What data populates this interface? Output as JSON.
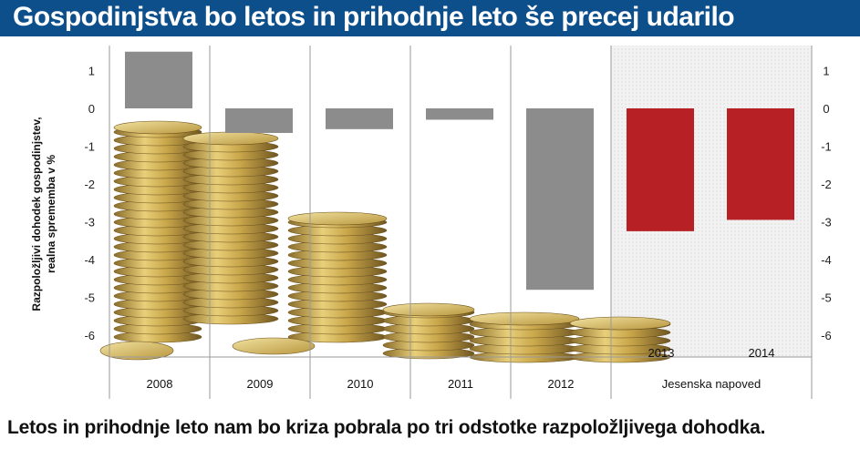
{
  "header": {
    "title": "Gospodinjstva bo letos in prihodnje leto še precej udarilo"
  },
  "footer": {
    "caption": "Letos in prihodnje leto nam bo kriza pobrala po tri odstotke razpoložljivega dohodka."
  },
  "chart_data": {
    "type": "bar",
    "title": "Gospodinjstva bo letos in prihodnje leto še precej udarilo",
    "ylabel_lines": [
      "Razpoložljivi dohodek gospodinjstev,",
      "realna sprememba v %"
    ],
    "categories": [
      "2008",
      "2009",
      "2010",
      "2011",
      "2012",
      "2013",
      "2014"
    ],
    "values": [
      1.5,
      -0.65,
      -0.55,
      -0.3,
      -4.8,
      -3.25,
      -2.95
    ],
    "forecast_group_label": "Jesenska napoved",
    "forecast_categories": [
      "2013",
      "2014"
    ],
    "ylim": [
      -6.6,
      1.7
    ],
    "yticks": [
      1,
      0,
      -1,
      -2,
      -3,
      -4,
      -5,
      -6
    ],
    "colors": {
      "actual": "#8c8c8c",
      "forecast": "#b72025"
    },
    "grid": false
  }
}
